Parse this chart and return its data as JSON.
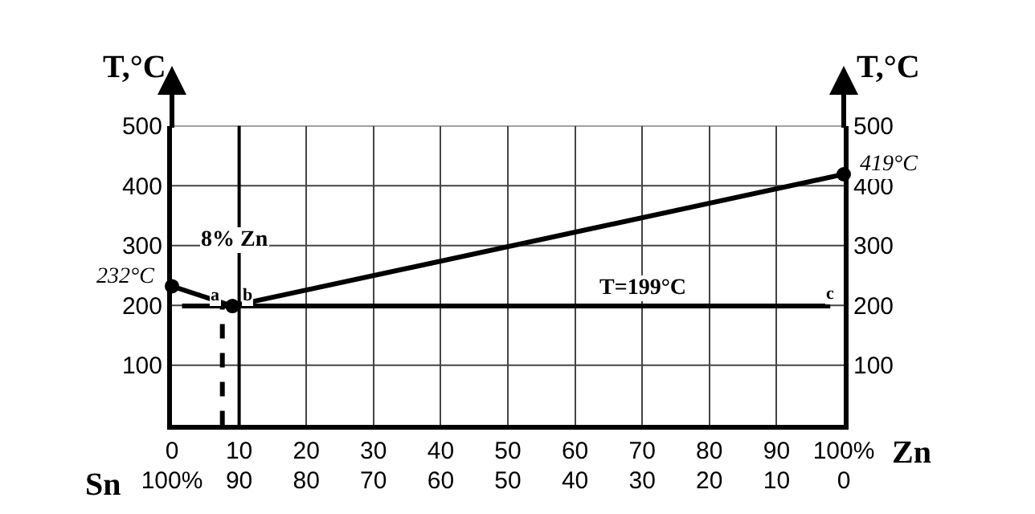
{
  "chart_data": {
    "type": "line",
    "xlabel": "Zn",
    "x2label": "Sn",
    "ylabel": "T,°C",
    "y2label": "T,°C",
    "xlim": [
      0,
      100
    ],
    "xticks": [
      0,
      10,
      20,
      30,
      40,
      50,
      60,
      70,
      80,
      90,
      {
        "value": 100,
        "label": "100%"
      }
    ],
    "x2lim": [
      100,
      0
    ],
    "x2ticks": [
      {
        "value": 100,
        "label": "100%"
      },
      90,
      80,
      70,
      60,
      50,
      40,
      30,
      20,
      10,
      0
    ],
    "ylim": [
      0,
      500
    ],
    "yticks": [
      100,
      200,
      300,
      400,
      500
    ],
    "y2lim": [
      0,
      500
    ],
    "y2ticks": [
      100,
      200,
      300,
      400,
      500
    ],
    "grid": true,
    "series": [
      {
        "color": "#000000",
        "marker": "circle",
        "line_style": "solid",
        "x": [
          0,
          9,
          100
        ],
        "values": [
          232,
          199,
          419
        ],
        "value_labels": [
          "232°C",
          null,
          "419°C"
        ]
      },
      {
        "color": "#000000",
        "marker": "none",
        "line_style": "solid",
        "x": [
          1.5,
          98
        ],
        "values": [
          199,
          199
        ]
      },
      {
        "color": "#000000",
        "marker": "none",
        "line_style": "dashed",
        "x": [
          7.5,
          7.5
        ],
        "values": [
          0,
          199
        ]
      }
    ],
    "ref_lines": [
      {
        "axis": "x",
        "value": 10,
        "color": "#000000",
        "line_style": "solid"
      }
    ],
    "annotations": [
      "8% Zn",
      {
        "text": "T=199°C",
        "x": 70,
        "y": 199
      },
      {
        "text": "a",
        "x": 7.5,
        "y": 199
      },
      {
        "text": "b",
        "x": 10,
        "y": 199
      },
      {
        "text": "c",
        "x": 98,
        "y": 199
      }
    ]
  }
}
